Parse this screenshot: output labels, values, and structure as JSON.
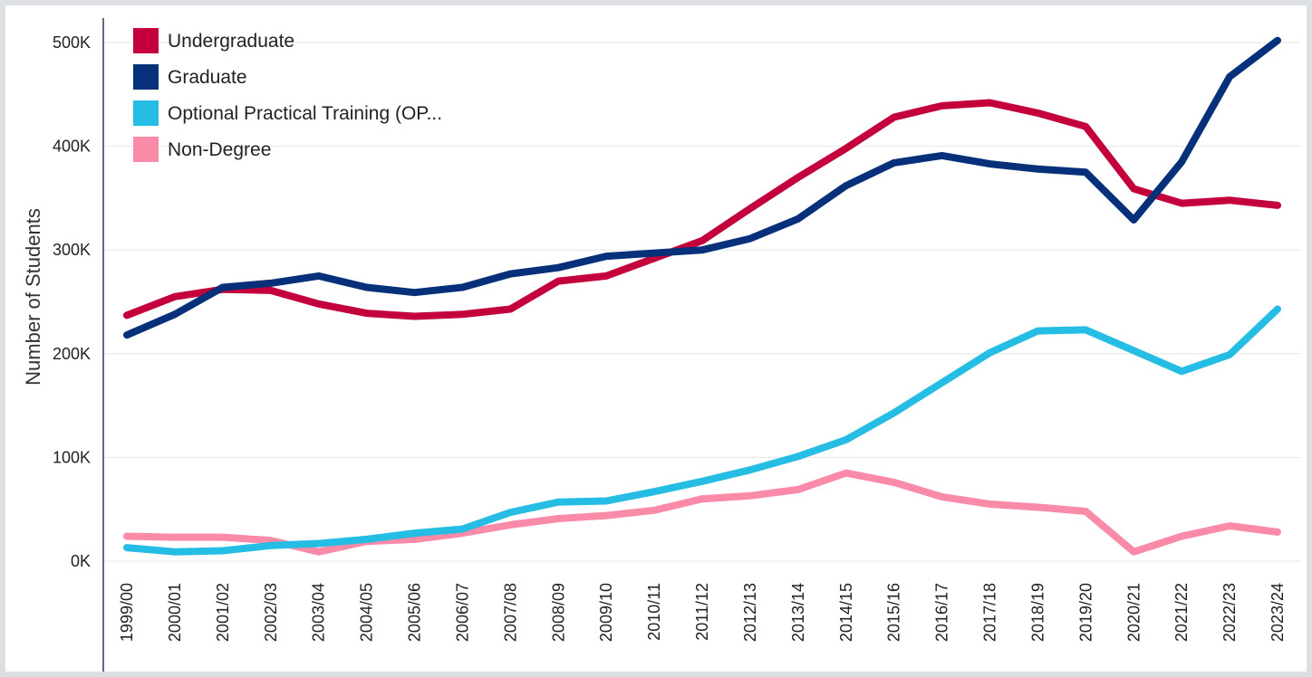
{
  "chart_data": {
    "type": "line",
    "title": "",
    "xlabel": "",
    "ylabel": "Number of Students",
    "ylim": [
      0,
      520000
    ],
    "grid": true,
    "legend_position": "top-left",
    "y_ticks": [
      0,
      100000,
      200000,
      300000,
      400000,
      500000
    ],
    "y_tick_labels": [
      "0K",
      "100K",
      "200K",
      "300K",
      "400K",
      "500K"
    ],
    "categories": [
      "1999/00",
      "2000/01",
      "2001/02",
      "2002/03",
      "2003/04",
      "2004/05",
      "2005/06",
      "2006/07",
      "2007/08",
      "2008/09",
      "2009/10",
      "2010/11",
      "2011/12",
      "2012/13",
      "2013/14",
      "2014/15",
      "2015/16",
      "2016/17",
      "2017/18",
      "2018/19",
      "2019/20",
      "2020/21",
      "2021/22",
      "2022/23",
      "2023/24"
    ],
    "series": [
      {
        "name": "Undergraduate",
        "color": "#c4003c",
        "values": [
          237000,
          255000,
          262000,
          261000,
          248000,
          239000,
          236000,
          238000,
          243000,
          270000,
          275000,
          292000,
          309000,
          340000,
          370000,
          398000,
          428000,
          439000,
          442000,
          432000,
          419000,
          359000,
          345000,
          348000,
          343000
        ]
      },
      {
        "name": "Graduate",
        "color": "#06307a",
        "values": [
          218000,
          238000,
          264000,
          268000,
          275000,
          264000,
          259000,
          264000,
          277000,
          283000,
          294000,
          297000,
          300000,
          311000,
          330000,
          362000,
          384000,
          391000,
          383000,
          378000,
          375000,
          329000,
          385000,
          467000,
          502000
        ]
      },
      {
        "name": "Optional Practical Training (OP...",
        "color": "#25bde3",
        "values": [
          13000,
          9000,
          10000,
          15000,
          17000,
          21000,
          27000,
          31000,
          47000,
          57000,
          58000,
          67000,
          77000,
          88000,
          101000,
          117000,
          143000,
          172000,
          201000,
          222000,
          223000,
          203000,
          183000,
          199000,
          243000
        ]
      },
      {
        "name": "Non-Degree",
        "color": "#f98aa8",
        "values": [
          24000,
          23000,
          23000,
          20000,
          9000,
          19000,
          21000,
          27000,
          35000,
          41000,
          44000,
          49000,
          60000,
          63000,
          69000,
          85000,
          76000,
          62000,
          55000,
          52000,
          48000,
          9000,
          24000,
          34000,
          28000
        ]
      }
    ]
  }
}
